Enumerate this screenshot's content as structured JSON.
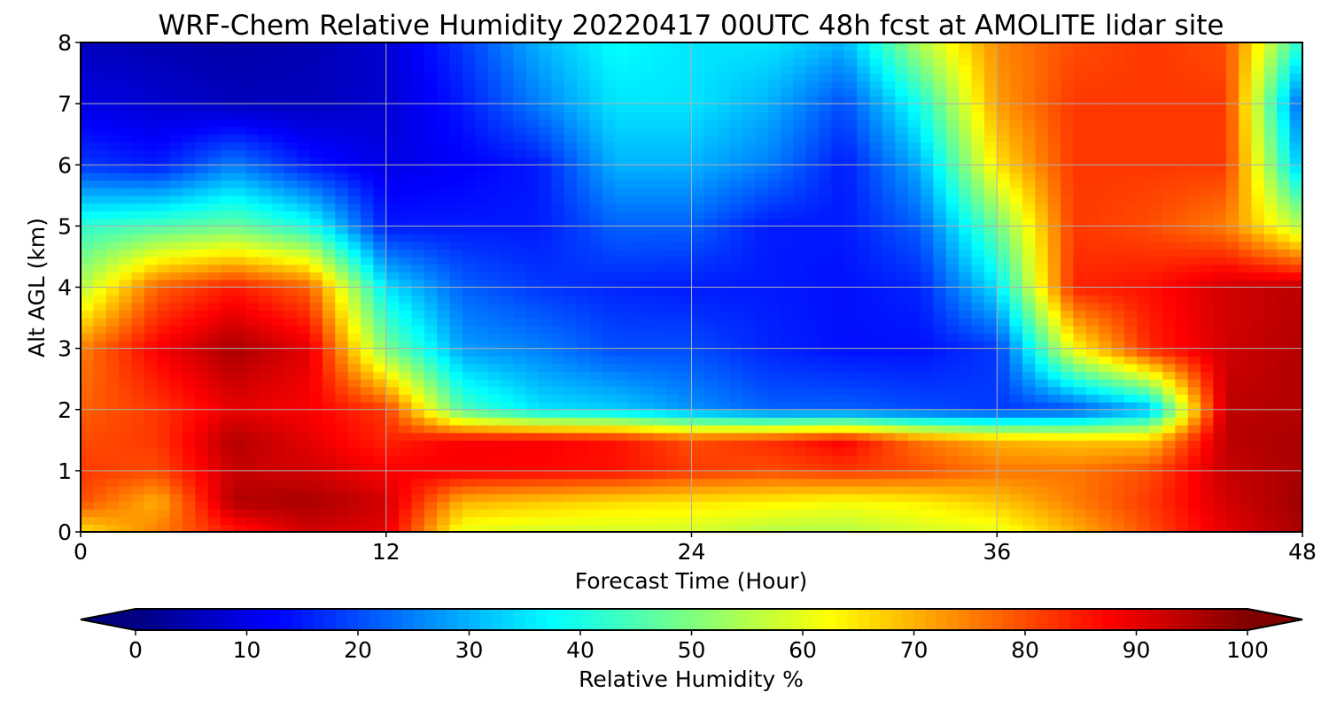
{
  "chart_data": {
    "type": "heatmap",
    "title": "WRF-Chem Relative Humidity 20220417 00UTC 48h fcst at AMOLITE lidar site",
    "xlabel": "Forecast Time (Hour)",
    "ylabel": "Alt AGL (km)",
    "xlim": [
      0,
      48
    ],
    "ylim": [
      0,
      8
    ],
    "x_ticks": [
      "0",
      "12",
      "24",
      "36",
      "48"
    ],
    "y_ticks": [
      "0",
      "1",
      "2",
      "3",
      "4",
      "5",
      "6",
      "7",
      "8"
    ],
    "grid": true,
    "colormap": "jet",
    "colorbar": {
      "label": "Relative Humidity %",
      "range": [
        0,
        100
      ],
      "ticks": [
        "0",
        "10",
        "20",
        "30",
        "40",
        "50",
        "60",
        "70",
        "80",
        "90",
        "100"
      ],
      "extend": "both",
      "orientation": "horizontal"
    },
    "x_hours": [
      0,
      3,
      6,
      9,
      12,
      15,
      18,
      21,
      24,
      27,
      30,
      33,
      36,
      39,
      42,
      45,
      48
    ],
    "z_km": [
      0,
      0.5,
      1,
      1.5,
      2,
      3,
      4,
      5,
      6,
      7,
      8
    ],
    "values": [
      [
        65,
        75,
        85,
        92,
        90,
        60,
        58,
        58,
        58,
        55,
        55,
        58,
        60,
        70,
        80,
        90,
        96
      ],
      [
        80,
        70,
        95,
        96,
        92,
        70,
        68,
        66,
        65,
        64,
        62,
        64,
        68,
        75,
        82,
        92,
        97
      ],
      [
        82,
        80,
        93,
        92,
        88,
        88,
        87,
        86,
        82,
        80,
        82,
        80,
        76,
        76,
        80,
        93,
        96
      ],
      [
        80,
        82,
        95,
        90,
        84,
        88,
        88,
        86,
        80,
        83,
        88,
        76,
        70,
        68,
        68,
        94,
        96
      ],
      [
        78,
        82,
        90,
        88,
        82,
        45,
        35,
        33,
        27,
        22,
        22,
        20,
        18,
        20,
        30,
        94,
        95
      ],
      [
        75,
        88,
        96,
        90,
        50,
        28,
        25,
        20,
        20,
        16,
        14,
        14,
        18,
        62,
        84,
        92,
        95
      ],
      [
        55,
        78,
        85,
        78,
        35,
        22,
        18,
        16,
        15,
        15,
        14,
        16,
        35,
        84,
        86,
        92,
        94
      ],
      [
        42,
        45,
        48,
        40,
        15,
        15,
        15,
        22,
        22,
        15,
        15,
        22,
        48,
        82,
        80,
        75,
        55
      ],
      [
        18,
        15,
        25,
        15,
        10,
        12,
        15,
        30,
        30,
        25,
        15,
        30,
        65,
        82,
        82,
        82,
        30
      ],
      [
        10,
        8,
        6,
        6,
        8,
        15,
        25,
        35,
        35,
        30,
        20,
        40,
        72,
        82,
        82,
        82,
        20
      ],
      [
        6,
        5,
        4,
        5,
        8,
        18,
        30,
        38,
        35,
        35,
        30,
        55,
        74,
        80,
        82,
        80,
        40
      ]
    ]
  }
}
